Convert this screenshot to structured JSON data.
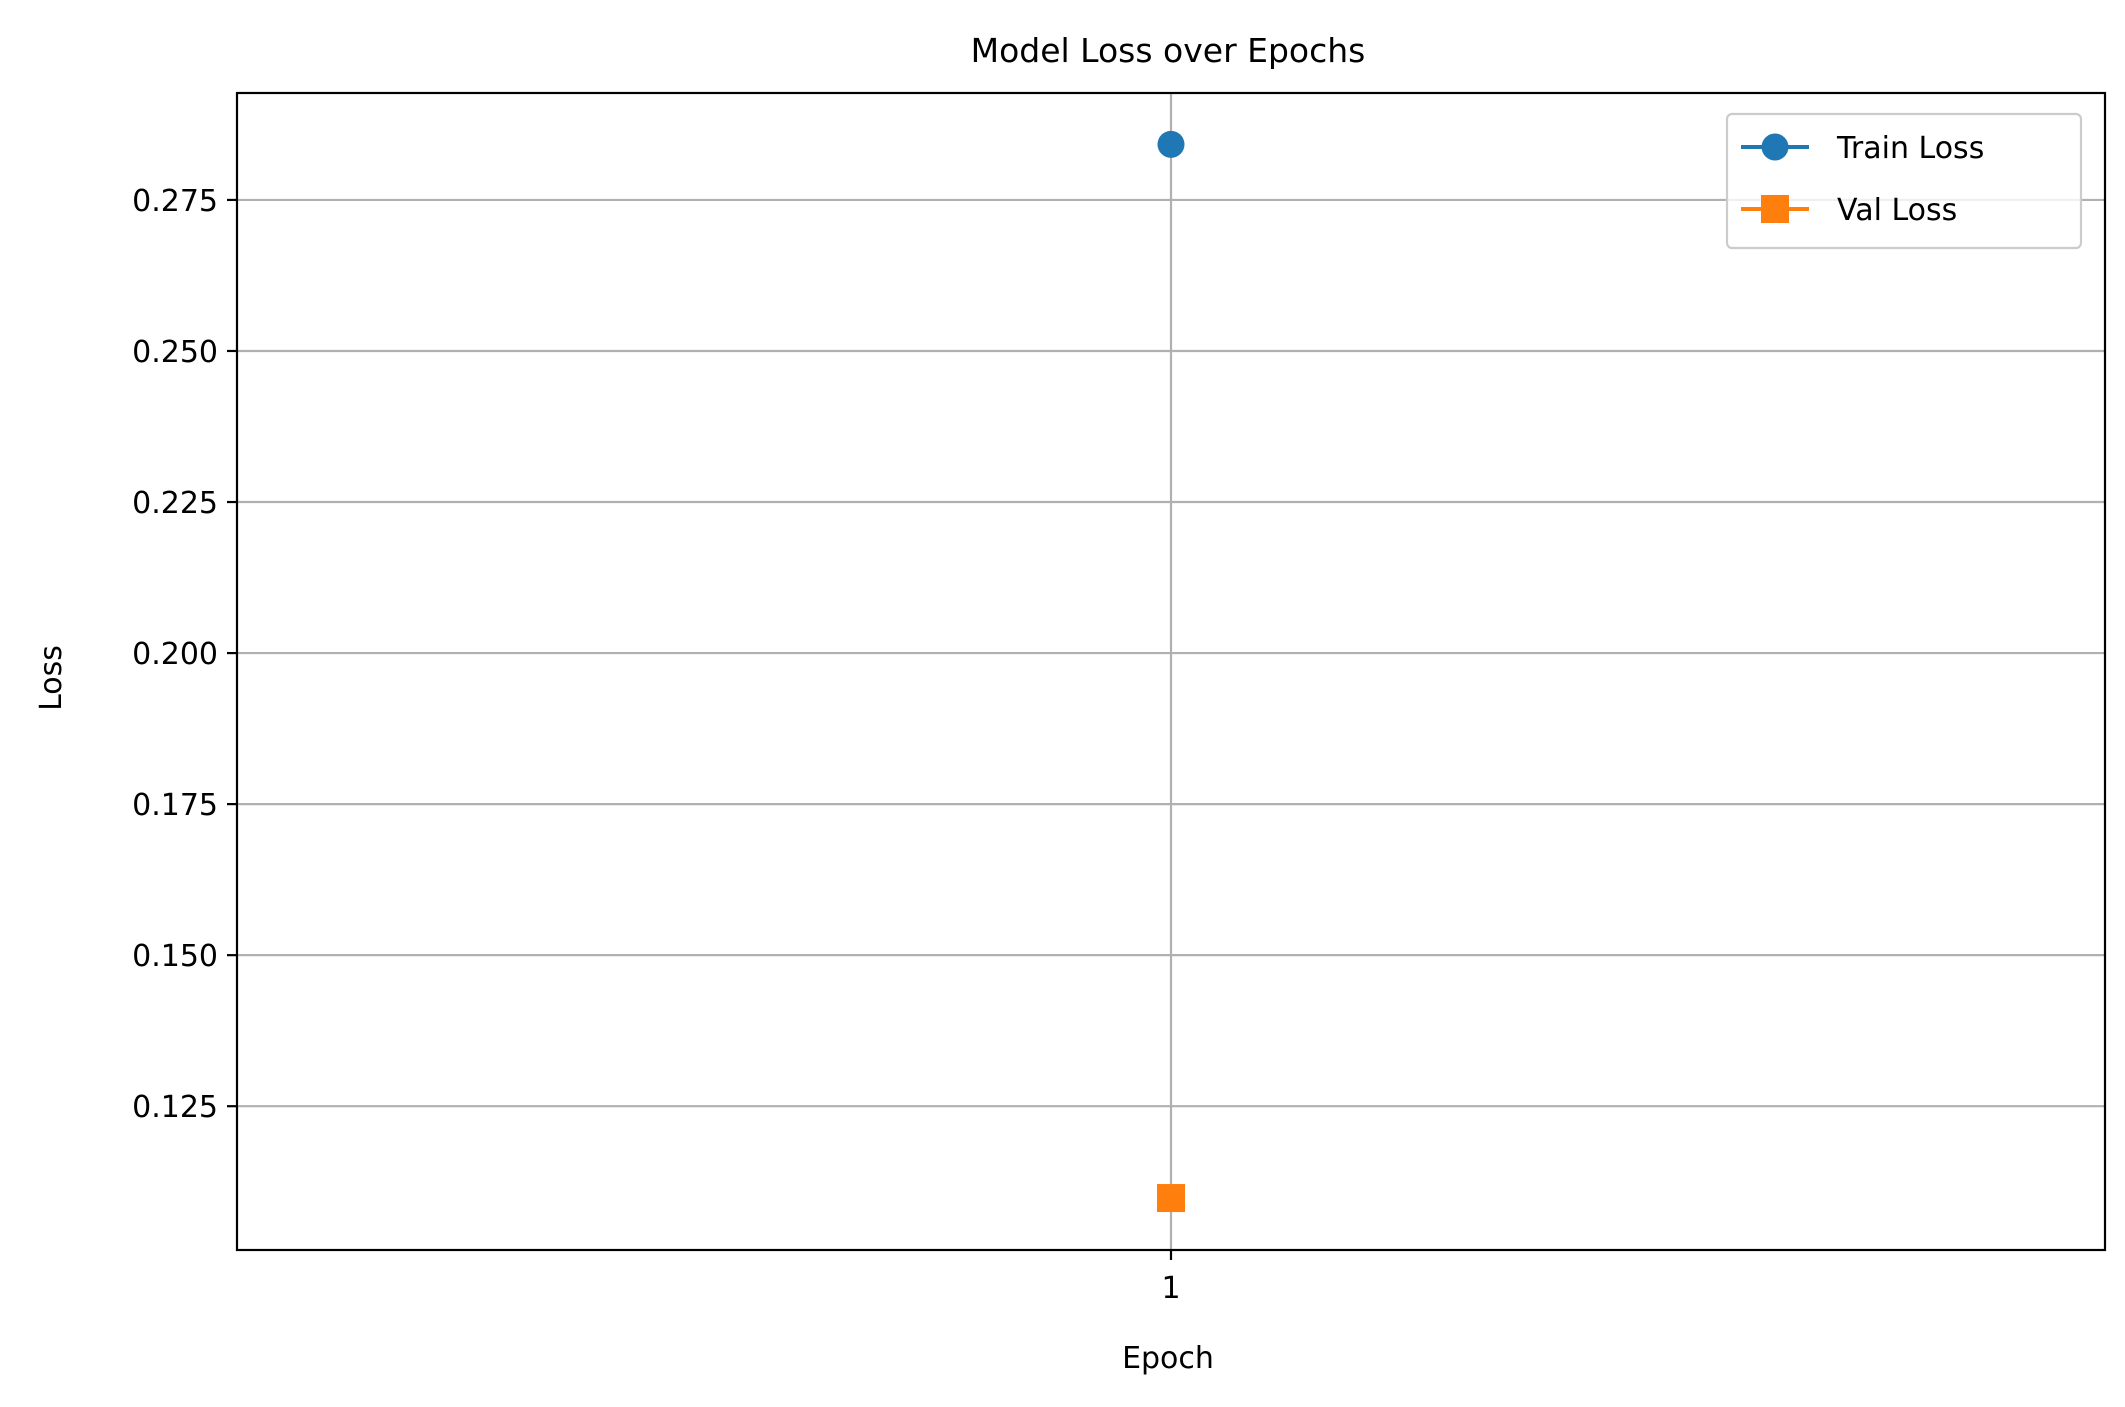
{
  "chart_data": {
    "type": "line",
    "title": "Model Loss over Epochs",
    "xlabel": "Epoch",
    "ylabel": "Loss",
    "x_ticks": [
      1
    ],
    "x_tick_labels": [
      "1"
    ],
    "xlim": [
      0.9,
      1.1
    ],
    "y_ticks": [
      0.125,
      0.15,
      0.175,
      0.2,
      0.225,
      0.25,
      0.275
    ],
    "y_tick_labels": [
      "0.125",
      "0.150",
      "0.175",
      "0.200",
      "0.225",
      "0.250",
      "0.275"
    ],
    "ylim": [
      0.1012,
      0.2927
    ],
    "grid": true,
    "legend_position": "top-right",
    "series": [
      {
        "name": "Train Loss",
        "x": [
          1
        ],
        "y": [
          0.2842
        ],
        "color": "#1f77b4",
        "marker": "circle"
      },
      {
        "name": "Val Loss",
        "x": [
          1
        ],
        "y": [
          0.1098
        ],
        "color": "#ff7f0e",
        "marker": "square"
      }
    ]
  }
}
